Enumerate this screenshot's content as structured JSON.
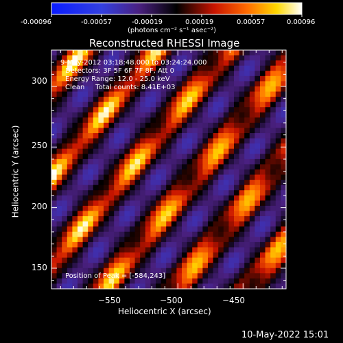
{
  "colors": {
    "background": "#000000",
    "foreground": "#ffffff"
  },
  "colorbar": {
    "ticks": [
      "-0.00096",
      "-0.00057",
      "-0.00019",
      "0.00019",
      "0.00057",
      "0.00096"
    ],
    "unit_label": "(photons cm⁻² s⁻¹ asec⁻²)",
    "range": [
      -0.00096,
      0.00096
    ],
    "colormap": "red-temperature diverging: blue → purple → black → red → orange → yellow → white"
  },
  "plot": {
    "title": "Reconstructed RHESSI Image",
    "info": [
      "9-May-2012 03:18:48.000 to 03:24:24.000",
      "Detectors: 3F 5F 6F 7F 8F, Att 0",
      "Energy Range: 12.0 - 25.0 keV",
      "Clean     Total counts: 8.41E+03"
    ],
    "peak_text": "Position of Peak = [-584,243]"
  },
  "footer": {
    "timestamp": "10-May-2022 15:01"
  },
  "chart_data": {
    "type": "heatmap",
    "title": "Reconstructed RHESSI Image",
    "xlabel": "Heliocentric X (arcsec)",
    "ylabel": "Heliocentric Y (arcsec)",
    "xlim": [
      -597,
      -417
    ],
    "ylim": [
      133,
      330
    ],
    "x_ticks": [
      -550,
      -500,
      -450
    ],
    "y_ticks": [
      150,
      200,
      250,
      300
    ],
    "x_tick_labels": [
      "−550",
      "−500",
      "−450"
    ],
    "y_tick_labels": [
      "150",
      "200",
      "250",
      "300"
    ],
    "grid": false,
    "value_range": [
      -0.00096,
      0.00096
    ],
    "pattern": "diagonal bright stripes (slope ~ +1.3 in arcsec), spacing ~ 55 arcsec",
    "peak_position": [
      -584,
      243
    ]
  }
}
